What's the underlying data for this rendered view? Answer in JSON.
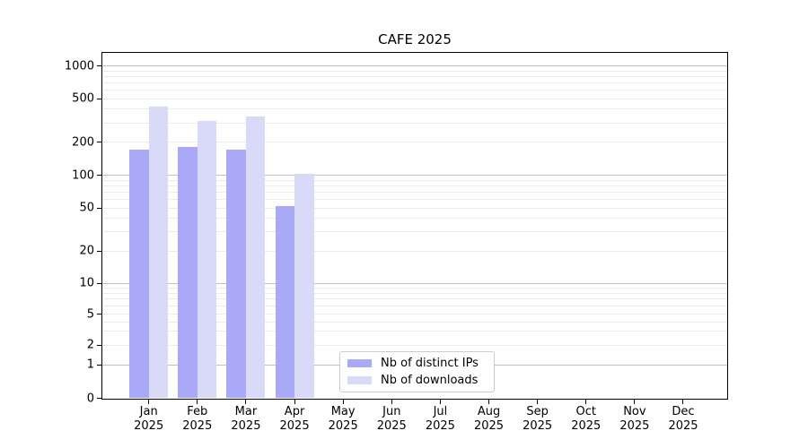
{
  "title": "CAFE 2025",
  "chart_data": {
    "type": "bar",
    "title": "CAFE 2025",
    "xlabel": "",
    "ylabel": "",
    "months": [
      "Jan",
      "Feb",
      "Mar",
      "Apr",
      "May",
      "Jun",
      "Jul",
      "Aug",
      "Sep",
      "Oct",
      "Nov",
      "Dec"
    ],
    "year_label": "2025",
    "categories": [
      "Jan 2025",
      "Feb 2025",
      "Mar 2025",
      "Apr 2025",
      "May 2025",
      "Jun 2025",
      "Jul 2025",
      "Aug 2025",
      "Sep 2025",
      "Oct 2025",
      "Nov 2025",
      "Dec 2025"
    ],
    "series": [
      {
        "name": "Nb of distinct IPs",
        "color": "#a9a9f7",
        "values": [
          170,
          180,
          170,
          52,
          0,
          0,
          0,
          0,
          0,
          0,
          0,
          0
        ]
      },
      {
        "name": "Nb of downloads",
        "color": "#d9d9f8",
        "values": [
          420,
          310,
          345,
          104,
          0,
          0,
          0,
          0,
          0,
          0,
          0,
          0
        ]
      }
    ],
    "yscale": "symlog",
    "yticks": [
      0,
      1,
      2,
      5,
      10,
      20,
      50,
      100,
      200,
      500,
      1000
    ],
    "ytick_labels": [
      "0",
      "1",
      "2",
      "5",
      "10",
      "20",
      "50",
      "100",
      "200",
      "500",
      "1000"
    ],
    "ylim": [
      0,
      1300
    ],
    "grid": true,
    "legend_position": "lower center",
    "colors": {
      "bar_distinct_ips": "#a9a9f7",
      "bar_downloads": "#d9d9f8",
      "major_gridline": "#c0c0c0",
      "minor_gridline": "#ebebeb",
      "axis": "#000000",
      "legend_border": "#cccccc",
      "background": "#ffffff"
    }
  }
}
